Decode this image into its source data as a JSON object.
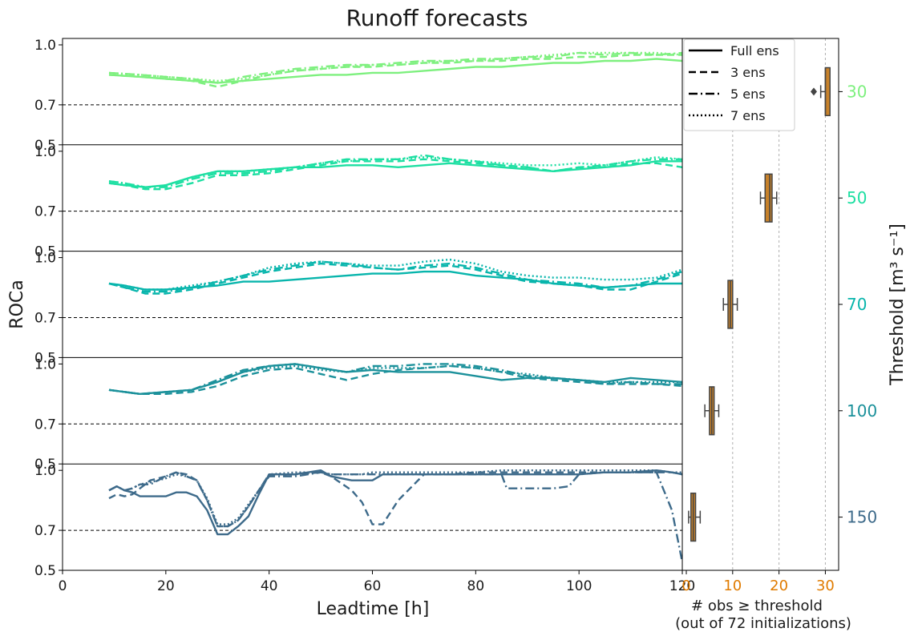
{
  "chart_data": {
    "type": "line",
    "title": "Runoff forecasts",
    "xlabel": "Leadtime [h]",
    "ylabel": "ROCa",
    "xlim": [
      0,
      120
    ],
    "xticks": [
      "0",
      "20",
      "40",
      "60",
      "80",
      "100",
      "120"
    ],
    "ylim": [
      0.5,
      1.0
    ],
    "yticks": [
      "0.5",
      "0.7",
      "1.0"
    ],
    "reference_line": 0.7,
    "right_axis_label": "Threshold [m³ s⁻¹]",
    "legend": [
      "Full ens",
      "3 ens",
      "5 ens",
      "7 ens"
    ],
    "legend_placement": "top-right",
    "panels": [
      {
        "threshold": "30",
        "color": "#7ef07f",
        "x": [
          9,
          15,
          20,
          25,
          30,
          35,
          40,
          45,
          50,
          55,
          60,
          65,
          70,
          75,
          80,
          85,
          90,
          95,
          100,
          105,
          110,
          115,
          120
        ],
        "series": [
          {
            "name": "Full ens",
            "values": [
              0.85,
              0.84,
              0.83,
              0.82,
              0.81,
              0.82,
              0.83,
              0.84,
              0.85,
              0.85,
              0.86,
              0.86,
              0.87,
              0.88,
              0.89,
              0.89,
              0.9,
              0.91,
              0.91,
              0.92,
              0.92,
              0.93,
              0.92
            ]
          },
          {
            "name": "3 ens",
            "values": [
              0.85,
              0.84,
              0.83,
              0.82,
              0.79,
              0.82,
              0.85,
              0.87,
              0.88,
              0.89,
              0.89,
              0.9,
              0.91,
              0.91,
              0.92,
              0.92,
              0.93,
              0.93,
              0.94,
              0.94,
              0.95,
              0.95,
              0.95
            ]
          },
          {
            "name": "5 ens",
            "values": [
              0.86,
              0.85,
              0.84,
              0.83,
              0.81,
              0.84,
              0.86,
              0.88,
              0.89,
              0.9,
              0.9,
              0.91,
              0.92,
              0.92,
              0.93,
              0.93,
              0.94,
              0.94,
              0.96,
              0.95,
              0.96,
              0.95,
              0.96
            ]
          },
          {
            "name": "7 ens",
            "values": [
              0.86,
              0.85,
              0.84,
              0.83,
              0.82,
              0.83,
              0.85,
              0.87,
              0.88,
              0.89,
              0.9,
              0.9,
              0.91,
              0.92,
              0.92,
              0.93,
              0.94,
              0.95,
              0.96,
              0.96,
              0.96,
              0.96,
              0.95
            ]
          }
        ],
        "boxplot": {
          "min": 29,
          "q1": 30,
          "median": 30,
          "q3": 31,
          "max": 31,
          "outlier": 27.5
        }
      },
      {
        "threshold": "50",
        "color": "#1ddfa2",
        "x": [
          9,
          12,
          16,
          20,
          25,
          30,
          35,
          40,
          45,
          50,
          55,
          60,
          65,
          70,
          75,
          80,
          85,
          90,
          95,
          100,
          105,
          110,
          115,
          120
        ],
        "series": [
          {
            "name": "Full ens",
            "values": [
              0.84,
              0.83,
              0.82,
              0.83,
              0.87,
              0.9,
              0.9,
              0.91,
              0.92,
              0.92,
              0.93,
              0.93,
              0.92,
              0.93,
              0.94,
              0.93,
              0.92,
              0.91,
              0.9,
              0.91,
              0.92,
              0.93,
              0.95,
              0.95
            ]
          },
          {
            "name": "3 ens",
            "values": [
              0.84,
              0.83,
              0.81,
              0.81,
              0.84,
              0.88,
              0.88,
              0.89,
              0.91,
              0.93,
              0.95,
              0.95,
              0.95,
              0.96,
              0.95,
              0.94,
              0.93,
              0.92,
              0.9,
              0.92,
              0.92,
              0.94,
              0.94,
              0.92
            ]
          },
          {
            "name": "5 ens",
            "values": [
              0.85,
              0.84,
              0.82,
              0.82,
              0.86,
              0.89,
              0.89,
              0.9,
              0.92,
              0.94,
              0.96,
              0.96,
              0.96,
              0.98,
              0.96,
              0.95,
              0.93,
              0.92,
              0.9,
              0.92,
              0.93,
              0.95,
              0.96,
              0.96
            ]
          },
          {
            "name": "7 ens",
            "values": [
              0.85,
              0.84,
              0.82,
              0.83,
              0.87,
              0.9,
              0.9,
              0.91,
              0.92,
              0.94,
              0.95,
              0.96,
              0.96,
              0.97,
              0.96,
              0.95,
              0.94,
              0.93,
              0.93,
              0.94,
              0.93,
              0.95,
              0.97,
              0.96
            ]
          }
        ],
        "boxplot": {
          "min": 16,
          "q1": 17,
          "median": 18,
          "q3": 18.5,
          "max": 19.5
        }
      },
      {
        "threshold": "70",
        "color": "#08b5ac",
        "x": [
          9,
          12,
          16,
          20,
          25,
          30,
          35,
          40,
          45,
          50,
          55,
          60,
          65,
          70,
          75,
          80,
          85,
          90,
          95,
          100,
          105,
          110,
          115,
          120
        ],
        "series": [
          {
            "name": "Full ens",
            "values": [
              0.87,
              0.86,
              0.84,
              0.84,
              0.85,
              0.86,
              0.88,
              0.88,
              0.89,
              0.9,
              0.91,
              0.92,
              0.92,
              0.93,
              0.93,
              0.91,
              0.9,
              0.89,
              0.87,
              0.86,
              0.85,
              0.86,
              0.87,
              0.87
            ]
          },
          {
            "name": "3 ens",
            "values": [
              0.87,
              0.85,
              0.82,
              0.82,
              0.84,
              0.87,
              0.9,
              0.93,
              0.95,
              0.97,
              0.96,
              0.95,
              0.94,
              0.95,
              0.96,
              0.94,
              0.91,
              0.88,
              0.87,
              0.86,
              0.84,
              0.84,
              0.88,
              0.92
            ]
          },
          {
            "name": "5 ens",
            "values": [
              0.87,
              0.85,
              0.83,
              0.83,
              0.85,
              0.88,
              0.91,
              0.94,
              0.96,
              0.98,
              0.97,
              0.95,
              0.94,
              0.96,
              0.97,
              0.95,
              0.92,
              0.89,
              0.88,
              0.87,
              0.85,
              0.86,
              0.89,
              0.93
            ]
          },
          {
            "name": "7 ens",
            "values": [
              0.87,
              0.86,
              0.84,
              0.84,
              0.86,
              0.88,
              0.91,
              0.95,
              0.97,
              0.98,
              0.97,
              0.96,
              0.96,
              0.98,
              0.99,
              0.97,
              0.93,
              0.91,
              0.9,
              0.9,
              0.89,
              0.89,
              0.9,
              0.94
            ]
          }
        ],
        "boxplot": {
          "min": 8,
          "q1": 9,
          "median": 9.5,
          "q3": 10,
          "max": 11
        }
      },
      {
        "threshold": "100",
        "color": "#1c919b",
        "x": [
          9,
          12,
          15,
          20,
          25,
          30,
          35,
          40,
          45,
          50,
          55,
          60,
          65,
          70,
          75,
          80,
          85,
          90,
          95,
          100,
          105,
          110,
          115,
          120
        ],
        "series": [
          {
            "name": "Full ens",
            "values": [
              0.87,
              0.86,
              0.85,
              0.86,
              0.87,
              0.91,
              0.96,
              0.99,
              1.0,
              0.98,
              0.96,
              0.97,
              0.96,
              0.96,
              0.96,
              0.94,
              0.92,
              0.93,
              0.93,
              0.92,
              0.91,
              0.93,
              0.92,
              0.91
            ]
          },
          {
            "name": "3 ens",
            "values": [
              0.87,
              0.86,
              0.85,
              0.85,
              0.86,
              0.89,
              0.94,
              0.97,
              0.98,
              0.95,
              0.92,
              0.95,
              0.97,
              0.98,
              0.99,
              0.98,
              0.96,
              0.93,
              0.92,
              0.91,
              0.9,
              0.9,
              0.9,
              0.89
            ]
          },
          {
            "name": "5 ens",
            "values": [
              0.87,
              0.86,
              0.85,
              0.86,
              0.87,
              0.92,
              0.97,
              0.99,
              1.0,
              0.98,
              0.96,
              0.99,
              0.99,
              1.0,
              1.0,
              0.99,
              0.97,
              0.94,
              0.93,
              0.92,
              0.9,
              0.91,
              0.9,
              0.9
            ]
          },
          {
            "name": "7 ens",
            "values": [
              0.87,
              0.86,
              0.85,
              0.86,
              0.87,
              0.91,
              0.96,
              0.98,
              0.99,
              0.97,
              0.96,
              0.98,
              0.98,
              0.98,
              0.99,
              0.98,
              0.96,
              0.95,
              0.93,
              0.92,
              0.91,
              0.91,
              0.91,
              0.91
            ]
          }
        ],
        "boxplot": {
          "min": 4,
          "q1": 5,
          "median": 5.5,
          "q3": 6,
          "max": 7
        }
      },
      {
        "threshold": "150",
        "color": "#3d6a8a",
        "x": [
          9,
          10.5,
          12,
          13.5,
          15,
          17,
          20,
          22,
          24,
          26,
          28,
          30,
          32,
          34,
          36,
          38,
          40,
          45,
          50,
          52,
          56,
          58,
          60,
          62,
          65,
          70,
          75,
          80,
          85,
          86,
          90,
          95,
          98,
          100,
          105,
          110,
          115,
          118,
          120
        ],
        "series": [
          {
            "name": "Full ens",
            "values": [
              0.9,
              0.92,
              0.9,
              0.89,
              0.87,
              0.87,
              0.87,
              0.89,
              0.89,
              0.87,
              0.8,
              0.68,
              0.68,
              0.72,
              0.77,
              0.88,
              0.98,
              0.98,
              1.0,
              0.97,
              0.95,
              0.95,
              0.95,
              0.98,
              0.98,
              0.98,
              0.98,
              0.98,
              0.98,
              0.98,
              0.98,
              0.98,
              0.98,
              0.98,
              0.99,
              0.99,
              1.0,
              0.99,
              0.98
            ]
          },
          {
            "name": "3 ens",
            "values": [
              0.86,
              0.88,
              0.87,
              0.88,
              0.91,
              0.95,
              0.97,
              0.99,
              0.98,
              0.95,
              0.85,
              0.72,
              0.72,
              0.75,
              0.82,
              0.9,
              0.98,
              0.98,
              0.99,
              0.97,
              0.9,
              0.84,
              0.73,
              0.73,
              0.85,
              0.98,
              0.98,
              0.99,
              0.99,
              0.99,
              0.99,
              0.99,
              0.99,
              0.99,
              0.99,
              0.99,
              0.99,
              0.99,
              0.98
            ]
          },
          {
            "name": "5 ens",
            "values": [
              0.9,
              0.92,
              0.9,
              0.91,
              0.93,
              0.93,
              0.97,
              0.99,
              0.97,
              0.95,
              0.85,
              0.72,
              0.72,
              0.75,
              0.82,
              0.9,
              0.97,
              0.97,
              0.99,
              0.98,
              0.98,
              0.98,
              0.98,
              0.98,
              0.98,
              0.98,
              0.98,
              0.98,
              0.98,
              0.91,
              0.91,
              0.91,
              0.92,
              0.98,
              0.99,
              0.99,
              0.99,
              0.8,
              0.54
            ]
          },
          {
            "name": "7 ens",
            "values": [
              0.9,
              0.92,
              0.9,
              0.91,
              0.93,
              0.94,
              0.96,
              0.98,
              0.97,
              0.95,
              0.86,
              0.73,
              0.73,
              0.76,
              0.83,
              0.9,
              0.98,
              0.99,
              0.99,
              0.98,
              0.98,
              0.98,
              0.99,
              0.99,
              0.99,
              0.99,
              0.99,
              0.99,
              1.0,
              1.0,
              1.0,
              1.0,
              1.0,
              1.0,
              1.0,
              1.0,
              1.0,
              0.99,
              0.99
            ]
          }
        ],
        "boxplot": {
          "min": 0.5,
          "q1": 1,
          "median": 1.5,
          "q3": 2,
          "max": 3
        }
      }
    ],
    "side_panel": {
      "xticks": [
        "0",
        "10",
        "20",
        "30"
      ],
      "xlim": [
        0,
        32
      ],
      "xlabel_line1": "# obs ≥ threshold",
      "xlabel_line2": "(out of 72 initializations)",
      "tick_color": "#e07b00",
      "box_fill": "#c8822a",
      "grid": true
    }
  }
}
